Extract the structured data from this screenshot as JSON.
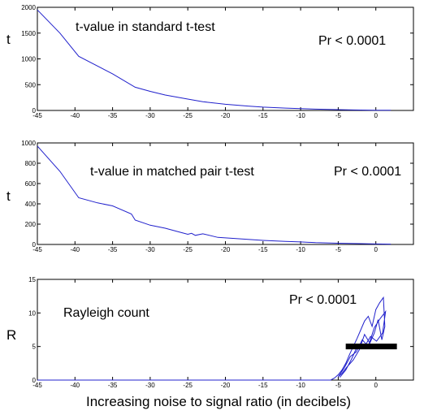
{
  "chart_data": [
    {
      "type": "line",
      "ylabel": "t",
      "annotations": [
        "t-value in standard t-test",
        "Pr < 0.0001"
      ],
      "xlim": [
        -45,
        5
      ],
      "ylim": [
        0,
        2000
      ],
      "xticks": [
        -45,
        -40,
        -35,
        -30,
        -25,
        -20,
        -15,
        -10,
        -5,
        0
      ],
      "yticks": [
        0,
        500,
        1000,
        1500,
        2000
      ],
      "color": "#2020cc",
      "series": [
        {
          "x": [
            -45,
            -42,
            -39.5,
            -35,
            -32,
            -30,
            -28,
            -25,
            -23,
            -20,
            -17,
            -15,
            -12,
            -10,
            -8,
            -5,
            -3,
            0,
            2
          ],
          "y": [
            1950,
            1500,
            1050,
            710,
            450,
            370,
            300,
            220,
            170,
            120,
            85,
            65,
            45,
            35,
            25,
            15,
            10,
            5,
            3
          ]
        }
      ]
    },
    {
      "type": "line",
      "ylabel": "t",
      "annotations": [
        "t-value in matched pair t-test",
        "Pr < 0.0001"
      ],
      "xlim": [
        -45,
        5
      ],
      "ylim": [
        0,
        1000
      ],
      "xticks": [
        -45,
        -40,
        -35,
        -30,
        -25,
        -20,
        -15,
        -10,
        -5,
        0
      ],
      "yticks": [
        0,
        200,
        400,
        600,
        800,
        1000
      ],
      "color": "#2020cc",
      "series": [
        {
          "x": [
            -45,
            -42,
            -39.5,
            -37,
            -35,
            -32.5,
            -32,
            -30,
            -28,
            -26,
            -25,
            -24.5,
            -24,
            -23,
            -21,
            -20,
            -18,
            -15,
            -12,
            -10,
            -8,
            -5,
            -2,
            0,
            2
          ],
          "y": [
            970,
            720,
            460,
            410,
            380,
            300,
            240,
            190,
            160,
            120,
            100,
            110,
            90,
            105,
            70,
            65,
            55,
            40,
            30,
            25,
            18,
            12,
            8,
            5,
            3
          ]
        }
      ]
    },
    {
      "type": "line",
      "ylabel": "R",
      "annotations": [
        "Rayleigh count",
        "Pr < 0.0001"
      ],
      "xlim": [
        -45,
        5
      ],
      "ylim": [
        0,
        15
      ],
      "xticks": [
        -45,
        -40,
        -35,
        -30,
        -25,
        -20,
        -15,
        -10,
        -5,
        0
      ],
      "yticks": [
        0,
        5,
        10,
        15
      ],
      "color": "#2020cc",
      "series": [
        {
          "x": [
            -45,
            -10,
            -6,
            -5.5,
            -5,
            -4.5,
            -4,
            -3.5,
            -3,
            -2.5,
            -2,
            -1.5,
            -1,
            -0.5,
            0,
            0.5,
            1,
            1.2,
            0.8,
            0.3,
            -0.2,
            -0.8,
            -1.5,
            -2.2,
            -3,
            -3.8,
            -4.5,
            -5,
            -4.2,
            -3.4,
            -2.6,
            -1.8,
            -1,
            -0.2,
            0.6,
            1.3,
            0.9,
            0.1,
            -0.7,
            -1.6,
            -2.4,
            -3.2,
            -4,
            -4.8
          ],
          "y": [
            0,
            0,
            0,
            0.3,
            0.8,
            1.5,
            2.5,
            3.8,
            5,
            6.2,
            7.5,
            8.8,
            9.5,
            8,
            10.5,
            11.5,
            12.3,
            8,
            6,
            9,
            7,
            5.5,
            6.8,
            4.5,
            3,
            2,
            1,
            0.5,
            1.8,
            3.5,
            4.2,
            6,
            5,
            7.8,
            9.2,
            10.2,
            7,
            5.8,
            6.5,
            4.8,
            5.2,
            3.2,
            1.5,
            0.4
          ]
        }
      ],
      "reference_bar": {
        "x": [
          -4,
          2.8
        ],
        "y": 5
      }
    }
  ],
  "xlabel": "Increasing noise to signal ratio (in decibels)"
}
